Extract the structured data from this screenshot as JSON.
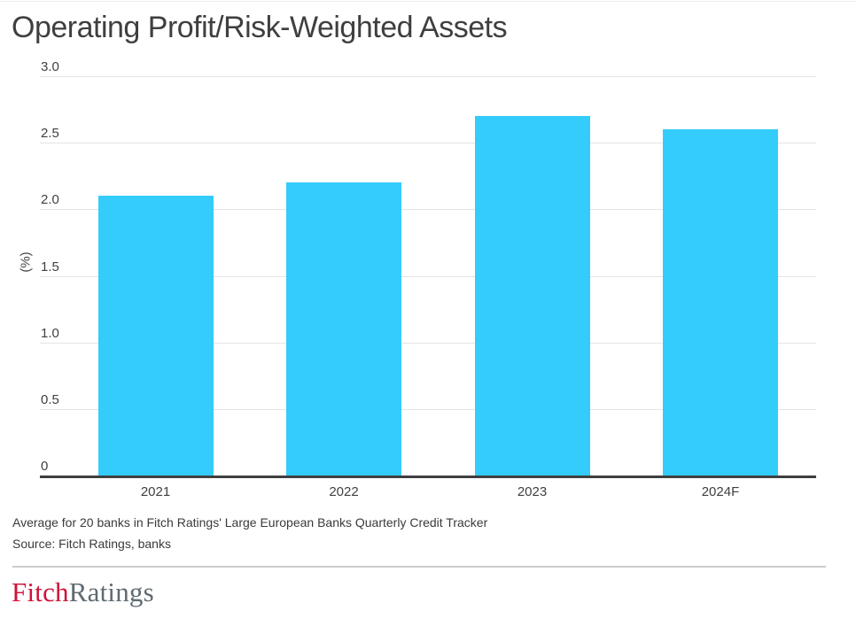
{
  "title": "Operating Profit/Risk-Weighted Assets",
  "chart_data": {
    "type": "bar",
    "title": "Operating Profit/Risk-Weighted Assets",
    "categories": [
      "2021",
      "2022",
      "2023",
      "2024F"
    ],
    "values": [
      2.1,
      2.2,
      2.7,
      2.6
    ],
    "xlabel": "",
    "ylabel": "(%)",
    "ylim": [
      0,
      3.0
    ],
    "yticks": [
      {
        "value": 3.0,
        "label": "3.0"
      },
      {
        "value": 2.5,
        "label": "2.5"
      },
      {
        "value": 2.0,
        "label": "2.0"
      },
      {
        "value": 1.5,
        "label": "1.5"
      },
      {
        "value": 1.0,
        "label": "1.0"
      },
      {
        "value": 0.5,
        "label": "0.5"
      },
      {
        "value": 0,
        "label": "0"
      }
    ],
    "grid": true,
    "legend": "none",
    "bar_color": "#33CCFB"
  },
  "footnotes": {
    "note": "Average for 20 banks in Fitch Ratings' Large European Banks Quarterly Credit Tracker",
    "source": "Source: Fitch Ratings, banks"
  },
  "logo": {
    "part1": "Fitch",
    "part2": "Ratings"
  },
  "colors": {
    "bar": "#33CCFB",
    "axis_line": "#3f3f3f",
    "gridline": "#e4e4e4",
    "title_text": "#3f3f3f",
    "tick_text": "#404040",
    "logo_red": "#cf1239",
    "logo_gray": "#5f6a71"
  }
}
